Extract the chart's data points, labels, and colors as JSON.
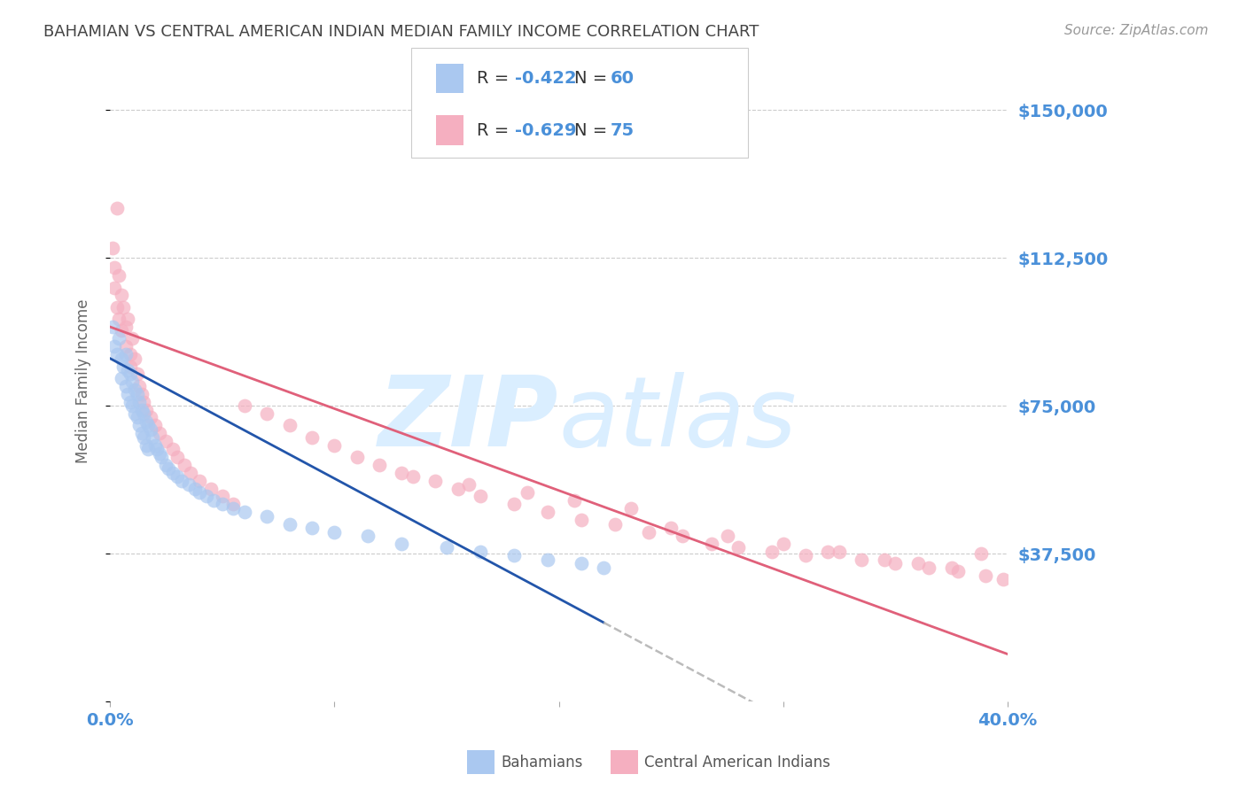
{
  "title": "BAHAMIAN VS CENTRAL AMERICAN INDIAN MEDIAN FAMILY INCOME CORRELATION CHART",
  "source": "Source: ZipAtlas.com",
  "ylabel": "Median Family Income",
  "yticks": [
    0,
    37500,
    75000,
    112500,
    150000
  ],
  "ytick_labels": [
    "",
    "$37,500",
    "$75,000",
    "$112,500",
    "$150,000"
  ],
  "ymin": 0,
  "ymax": 162500,
  "xmin": 0.0,
  "xmax": 0.4,
  "legend_R1": "R = ",
  "legend_val1": "-0.422",
  "legend_N1": "   N = ",
  "legend_nval1": "60",
  "legend_R2": "R = ",
  "legend_val2": "-0.629",
  "legend_N2": "   N = ",
  "legend_nval2": "75",
  "legend_label1": "Bahamians",
  "legend_label2": "Central American Indians",
  "blue_color": "#aac8f0",
  "pink_color": "#f5afc0",
  "blue_line_color": "#2255aa",
  "pink_line_color": "#e0607a",
  "axis_label_color": "#4a90d9",
  "background_color": "#ffffff",
  "grid_color": "#cccccc",
  "title_color": "#444444",
  "watermark_color": "#daeeff",
  "blue_points_x": [
    0.001,
    0.002,
    0.003,
    0.004,
    0.005,
    0.005,
    0.006,
    0.007,
    0.007,
    0.008,
    0.008,
    0.009,
    0.009,
    0.01,
    0.01,
    0.011,
    0.011,
    0.012,
    0.012,
    0.013,
    0.013,
    0.014,
    0.014,
    0.015,
    0.015,
    0.016,
    0.016,
    0.017,
    0.017,
    0.018,
    0.019,
    0.02,
    0.021,
    0.022,
    0.023,
    0.025,
    0.026,
    0.028,
    0.03,
    0.032,
    0.035,
    0.038,
    0.04,
    0.043,
    0.046,
    0.05,
    0.055,
    0.06,
    0.07,
    0.08,
    0.09,
    0.1,
    0.115,
    0.13,
    0.15,
    0.165,
    0.18,
    0.195,
    0.21,
    0.22
  ],
  "blue_points_y": [
    95000,
    90000,
    88000,
    92000,
    87000,
    82000,
    85000,
    88000,
    80000,
    84000,
    78000,
    83000,
    76000,
    81000,
    75000,
    79000,
    73000,
    78000,
    72000,
    76000,
    70000,
    74000,
    68000,
    73000,
    67000,
    71000,
    65000,
    70000,
    64000,
    69000,
    67000,
    65000,
    64000,
    63000,
    62000,
    60000,
    59000,
    58000,
    57000,
    56000,
    55000,
    54000,
    53000,
    52000,
    51000,
    50000,
    49000,
    48000,
    47000,
    45000,
    44000,
    43000,
    42000,
    40000,
    39000,
    38000,
    37000,
    36000,
    35000,
    34000
  ],
  "pink_points_x": [
    0.001,
    0.002,
    0.002,
    0.003,
    0.003,
    0.004,
    0.004,
    0.005,
    0.005,
    0.006,
    0.007,
    0.007,
    0.008,
    0.009,
    0.009,
    0.01,
    0.011,
    0.012,
    0.013,
    0.014,
    0.015,
    0.016,
    0.018,
    0.02,
    0.022,
    0.025,
    0.028,
    0.03,
    0.033,
    0.036,
    0.04,
    0.045,
    0.05,
    0.055,
    0.06,
    0.07,
    0.08,
    0.09,
    0.1,
    0.11,
    0.12,
    0.13,
    0.145,
    0.155,
    0.165,
    0.18,
    0.195,
    0.21,
    0.225,
    0.24,
    0.255,
    0.268,
    0.28,
    0.295,
    0.31,
    0.32,
    0.335,
    0.35,
    0.365,
    0.378,
    0.39,
    0.398,
    0.25,
    0.275,
    0.3,
    0.325,
    0.345,
    0.36,
    0.375,
    0.388,
    0.135,
    0.16,
    0.186,
    0.207,
    0.232
  ],
  "pink_points_y": [
    115000,
    110000,
    105000,
    125000,
    100000,
    108000,
    97000,
    103000,
    94000,
    100000,
    95000,
    90000,
    97000,
    88000,
    85000,
    92000,
    87000,
    83000,
    80000,
    78000,
    76000,
    74000,
    72000,
    70000,
    68000,
    66000,
    64000,
    62000,
    60000,
    58000,
    56000,
    54000,
    52000,
    50000,
    75000,
    73000,
    70000,
    67000,
    65000,
    62000,
    60000,
    58000,
    56000,
    54000,
    52000,
    50000,
    48000,
    46000,
    45000,
    43000,
    42000,
    40000,
    39000,
    38000,
    37000,
    38000,
    36000,
    35000,
    34000,
    33000,
    32000,
    31000,
    44000,
    42000,
    40000,
    38000,
    36000,
    35000,
    34000,
    37500,
    57000,
    55000,
    53000,
    51000,
    49000
  ]
}
